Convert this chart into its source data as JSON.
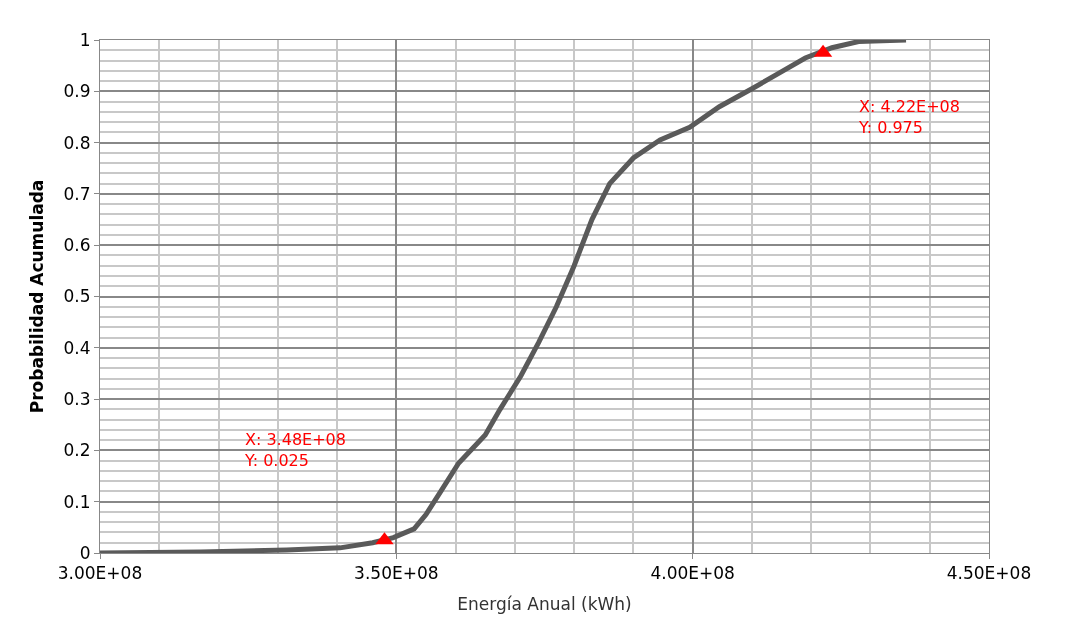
{
  "chart_data": {
    "type": "line",
    "xlabel": "Energía Anual (kWh)",
    "ylabel": "Probabilidad Acumulada",
    "series": [
      {
        "color": "#5a5a5a",
        "marker": "none",
        "x": [
          300000000,
          317000000,
          331500000,
          340500000,
          346000000,
          349500000,
          353000000,
          355000000,
          357500000,
          360500000,
          365000000,
          367500000,
          371000000,
          374000000,
          377000000,
          380000000,
          383000000,
          386000000,
          390000000,
          394500000,
          399500000,
          404500000,
          410000000,
          414500000,
          419000000,
          423500000,
          428000000,
          436000000
        ],
        "values": [
          0,
          0.002,
          0.006,
          0.01,
          0.02,
          0.03,
          0.047,
          0.075,
          0.12,
          0.175,
          0.23,
          0.28,
          0.345,
          0.41,
          0.48,
          0.56,
          0.65,
          0.72,
          0.77,
          0.805,
          0.83,
          0.87,
          0.905,
          0.935,
          0.965,
          0.985,
          0.997,
          1.0
        ]
      },
      {
        "type": "scatter",
        "color": "#ff0000",
        "marker": "triangle",
        "x": [
          348000000,
          422000000
        ],
        "values": [
          0.025,
          0.975
        ]
      }
    ],
    "xlim": [
      300000000,
      450000000
    ],
    "xticks": [
      {
        "value": 300000000,
        "label": "3.00E+08"
      },
      {
        "value": 350000000,
        "label": "3.50E+08"
      },
      {
        "value": 400000000,
        "label": "4.00E+08"
      },
      {
        "value": 450000000,
        "label": "4.50E+08"
      }
    ],
    "ylim": [
      0,
      1
    ],
    "yticks": [
      0,
      0.1,
      0.2,
      0.3,
      0.4,
      0.5,
      0.6,
      0.7,
      0.8,
      0.9,
      1
    ],
    "grid": true,
    "annotations": [
      "X: 3.48E+08\nY: 0.025",
      "X: 4.22E+08\nY: 0.975"
    ]
  }
}
